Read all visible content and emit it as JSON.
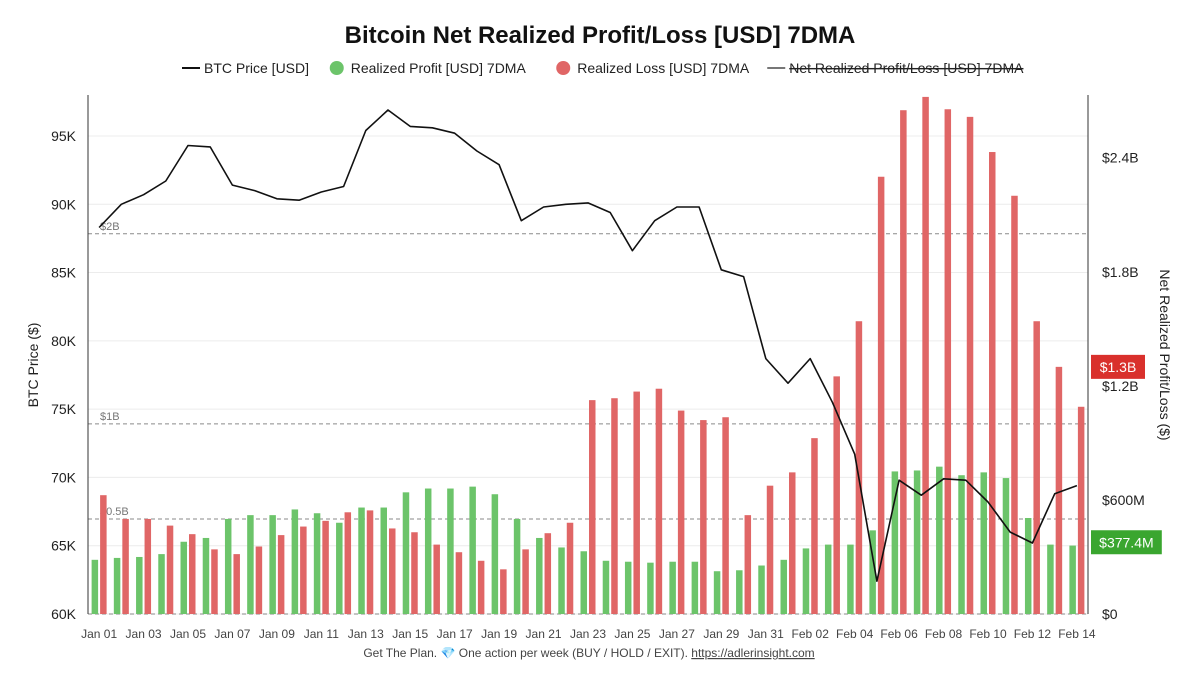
{
  "title": "Bitcoin Net Realized Profit/Loss [USD] 7DMA",
  "footer": {
    "text": "Get The Plan. 💎 One action per week (BUY / HOLD / EXIT). ",
    "link": "https://adlerinsight.com"
  },
  "legend": [
    {
      "label": "BTC Price [USD]",
      "kind": "line",
      "color": "#111111",
      "disabled": false
    },
    {
      "label": "Realized Profit [USD] 7DMA",
      "kind": "dot",
      "color": "#6cc46a",
      "disabled": false
    },
    {
      "label": "Realized Loss [USD] 7DMA",
      "kind": "dot",
      "color": "#e06666",
      "disabled": false
    },
    {
      "label": "Net Realized Profit/Loss [USD] 7DMA",
      "kind": "line",
      "color": "#777777",
      "disabled": true
    }
  ],
  "badges": [
    {
      "label": "$1.3B",
      "value": 1300,
      "color": "#d9302c"
    },
    {
      "label": "$377.4M",
      "value": 377.4,
      "color": "#3aa62f"
    }
  ],
  "chart_data": {
    "type": "bar",
    "x": [
      "Jan 01",
      "Jan 02",
      "Jan 03",
      "Jan 04",
      "Jan 05",
      "Jan 06",
      "Jan 07",
      "Jan 08",
      "Jan 09",
      "Jan 10",
      "Jan 11",
      "Jan 12",
      "Jan 13",
      "Jan 14",
      "Jan 15",
      "Jan 16",
      "Jan 17",
      "Jan 18",
      "Jan 19",
      "Jan 20",
      "Jan 21",
      "Jan 22",
      "Jan 23",
      "Jan 24",
      "Jan 25",
      "Jan 26",
      "Jan 27",
      "Jan 28",
      "Jan 29",
      "Jan 30",
      "Jan 31",
      "Feb 01",
      "Feb 02",
      "Feb 03",
      "Feb 04",
      "Feb 05",
      "Feb 06",
      "Feb 07",
      "Feb 08",
      "Feb 09",
      "Feb 10",
      "Feb 11",
      "Feb 12",
      "Feb 13",
      "Feb 14"
    ],
    "x_tick_labels": [
      "Jan 01",
      "Jan 03",
      "Jan 05",
      "Jan 07",
      "Jan 09",
      "Jan 11",
      "Jan 13",
      "Jan 15",
      "Jan 17",
      "Jan 19",
      "Jan 21",
      "Jan 23",
      "Jan 25",
      "Jan 27",
      "Jan 29",
      "Jan 31",
      "Feb 02",
      "Feb 04",
      "Feb 06",
      "Feb 08",
      "Feb 10",
      "Feb 12",
      "Feb 14"
    ],
    "series": [
      {
        "name": "Realized Profit [USD] 7DMA",
        "axis": "right",
        "unit": "M USD",
        "color": "#6cc46a",
        "values": [
          285,
          295,
          300,
          315,
          380,
          400,
          500,
          520,
          520,
          550,
          530,
          480,
          560,
          560,
          640,
          660,
          660,
          670,
          630,
          500,
          400,
          350,
          330,
          280,
          275,
          270,
          275,
          275,
          225,
          230,
          255,
          285,
          345,
          365,
          365,
          440,
          750,
          755,
          775,
          730,
          745,
          715,
          505,
          365,
          360
        ]
      },
      {
        "name": "Realized Loss [USD] 7DMA",
        "axis": "right",
        "unit": "M USD",
        "color": "#e06666",
        "values": [
          625,
          500,
          500,
          465,
          420,
          340,
          315,
          355,
          415,
          460,
          490,
          535,
          545,
          450,
          430,
          365,
          325,
          280,
          235,
          340,
          425,
          480,
          1125,
          1135,
          1170,
          1185,
          1070,
          1020,
          1035,
          520,
          675,
          745,
          925,
          1250,
          1540,
          2300,
          2650,
          2720,
          2655,
          2615,
          2430,
          2200,
          1540,
          1300,
          1090
        ]
      },
      {
        "name": "BTC Price [USD]",
        "axis": "left",
        "unit": "USD",
        "color": "#111111",
        "values": [
          88300,
          90000,
          90700,
          91700,
          94300,
          94200,
          91400,
          91000,
          90400,
          90300,
          90900,
          91300,
          95400,
          96900,
          95700,
          95600,
          95200,
          93900,
          92900,
          88800,
          89800,
          90000,
          90100,
          89400,
          86600,
          88800,
          89800,
          89800,
          85200,
          84700,
          78700,
          76900,
          78700,
          75500,
          71700,
          62400,
          69800,
          68700,
          69900,
          69800,
          68200,
          66000,
          65200,
          68800,
          69400
        ]
      }
    ],
    "left_axis": {
      "label": "BTC Price ($)",
      "min": 60000,
      "max": 98000,
      "ticks": [
        60000,
        65000,
        70000,
        75000,
        80000,
        85000,
        90000,
        95000
      ],
      "tick_labels": [
        "60K",
        "65K",
        "70K",
        "75K",
        "80K",
        "85K",
        "90K",
        "95K"
      ]
    },
    "right_axis": {
      "label": "Net Realized Profit/Loss ($)",
      "min": 0,
      "max": 2730,
      "unit": "M USD",
      "ticks": [
        0,
        600,
        1200,
        1800,
        2400
      ],
      "tick_labels": [
        "$0",
        "$600M",
        "$1.2B",
        "$1.8B",
        "$2.4B"
      ]
    },
    "reference_lines": [
      {
        "label": "$2B",
        "value": 2000
      },
      {
        "label": "$1B",
        "value": 1000
      },
      {
        "label": "$0.5B",
        "value": 500
      },
      {
        "label": "",
        "value": 0
      }
    ],
    "grid": "horizontal",
    "legend_position": "top"
  }
}
